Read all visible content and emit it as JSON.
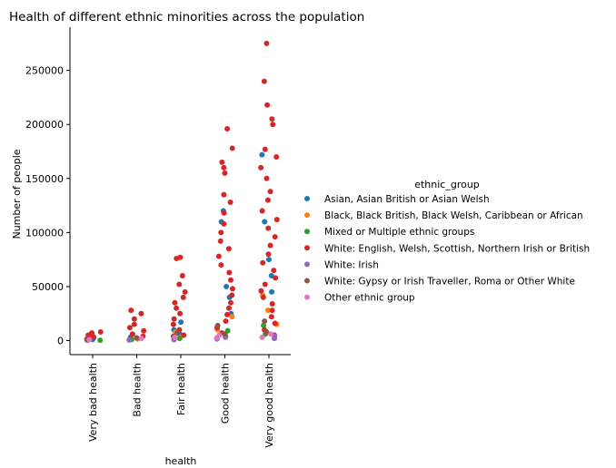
{
  "chart_data": {
    "type": "scatter",
    "title": "Health of different ethnic minorities across the population",
    "xlabel": "health",
    "ylabel": "Number of people",
    "categories": [
      "Very bad health",
      "Bad health",
      "Fair health",
      "Good health",
      "Very good health"
    ],
    "ylim": [
      -13000,
      290000
    ],
    "yticks": [
      0,
      50000,
      100000,
      150000,
      200000,
      250000
    ],
    "ytick_labels": [
      "0",
      "50000",
      "100000",
      "150000",
      "200000",
      "250000"
    ],
    "grid": false,
    "legend": {
      "title": "ethnic_group",
      "placement": "right"
    },
    "series": [
      {
        "name": "Asian, Asian British or Asian Welsh",
        "color": "#1f77b4",
        "points": [
          [
            0,
            1000
          ],
          [
            0,
            2500
          ],
          [
            1,
            3000
          ],
          [
            1,
            6000
          ],
          [
            2,
            6000
          ],
          [
            2,
            17000
          ],
          [
            2,
            10000
          ],
          [
            3,
            25000
          ],
          [
            3,
            50000
          ],
          [
            3,
            120000
          ],
          [
            3,
            110000
          ],
          [
            3,
            40000
          ],
          [
            4,
            60000
          ],
          [
            4,
            172000
          ],
          [
            4,
            75000
          ],
          [
            4,
            110000
          ],
          [
            4,
            45000
          ]
        ]
      },
      {
        "name": "Black, Black British, Black Welsh, Caribbean or African",
        "color": "#ff7f0e",
        "points": [
          [
            0,
            500
          ],
          [
            1,
            1500
          ],
          [
            2,
            3000
          ],
          [
            2,
            8000
          ],
          [
            3,
            10000
          ],
          [
            3,
            22000
          ],
          [
            4,
            15000
          ],
          [
            4,
            42000
          ],
          [
            4,
            28000
          ]
        ]
      },
      {
        "name": "Mixed or Multiple ethnic groups",
        "color": "#2ca02c",
        "points": [
          [
            0,
            300
          ],
          [
            1,
            1000
          ],
          [
            2,
            2000
          ],
          [
            3,
            4000
          ],
          [
            3,
            9000
          ],
          [
            4,
            6000
          ],
          [
            4,
            14000
          ]
        ]
      },
      {
        "name": "White: English, Welsh, Scottish, Northern Irish or British",
        "color": "#d62728",
        "points": [
          [
            0,
            8000
          ],
          [
            0,
            7000
          ],
          [
            0,
            5000
          ],
          [
            0,
            3500
          ],
          [
            0,
            2000
          ],
          [
            1,
            28000
          ],
          [
            1,
            25000
          ],
          [
            1,
            20000
          ],
          [
            1,
            15000
          ],
          [
            1,
            12000
          ],
          [
            1,
            9000
          ],
          [
            1,
            6000
          ],
          [
            1,
            4000
          ],
          [
            2,
            77000
          ],
          [
            2,
            76000
          ],
          [
            2,
            60000
          ],
          [
            2,
            52000
          ],
          [
            2,
            45000
          ],
          [
            2,
            40000
          ],
          [
            2,
            35000
          ],
          [
            2,
            30000
          ],
          [
            2,
            25000
          ],
          [
            2,
            20000
          ],
          [
            2,
            15000
          ],
          [
            2,
            10000
          ],
          [
            2,
            5000
          ],
          [
            3,
            196000
          ],
          [
            3,
            178000
          ],
          [
            3,
            165000
          ],
          [
            3,
            160000
          ],
          [
            3,
            155000
          ],
          [
            3,
            135000
          ],
          [
            3,
            128000
          ],
          [
            3,
            118000
          ],
          [
            3,
            108000
          ],
          [
            3,
            100000
          ],
          [
            3,
            92000
          ],
          [
            3,
            85000
          ],
          [
            3,
            78000
          ],
          [
            3,
            70000
          ],
          [
            3,
            63000
          ],
          [
            3,
            56000
          ],
          [
            3,
            48000
          ],
          [
            3,
            42000
          ],
          [
            3,
            35000
          ],
          [
            3,
            30000
          ],
          [
            3,
            24000
          ],
          [
            3,
            18000
          ],
          [
            3,
            12000
          ],
          [
            3,
            7000
          ],
          [
            4,
            275000
          ],
          [
            4,
            240000
          ],
          [
            4,
            218000
          ],
          [
            4,
            205000
          ],
          [
            4,
            200000
          ],
          [
            4,
            177000
          ],
          [
            4,
            170000
          ],
          [
            4,
            160000
          ],
          [
            4,
            150000
          ],
          [
            4,
            138000
          ],
          [
            4,
            130000
          ],
          [
            4,
            120000
          ],
          [
            4,
            112000
          ],
          [
            4,
            104000
          ],
          [
            4,
            96000
          ],
          [
            4,
            88000
          ],
          [
            4,
            80000
          ],
          [
            4,
            72000
          ],
          [
            4,
            65000
          ],
          [
            4,
            58000
          ],
          [
            4,
            52000
          ],
          [
            4,
            46000
          ],
          [
            4,
            40000
          ],
          [
            4,
            34000
          ],
          [
            4,
            28000
          ],
          [
            4,
            22000
          ],
          [
            4,
            16000
          ],
          [
            4,
            10000
          ],
          [
            4,
            5000
          ]
        ]
      },
      {
        "name": "White: Irish",
        "color": "#9467bd",
        "points": [
          [
            0,
            200
          ],
          [
            1,
            500
          ],
          [
            2,
            800
          ],
          [
            3,
            1500
          ],
          [
            3,
            3000
          ],
          [
            4,
            2000
          ],
          [
            4,
            4000
          ]
        ]
      },
      {
        "name": "White: Gypsy or Irish Traveller, Roma or Other White",
        "color": "#8c564b",
        "points": [
          [
            0,
            1500
          ],
          [
            1,
            2500
          ],
          [
            2,
            4000
          ],
          [
            2,
            7000
          ],
          [
            3,
            6000
          ],
          [
            3,
            14000
          ],
          [
            4,
            8000
          ],
          [
            4,
            18000
          ]
        ]
      },
      {
        "name": "Other ethnic group",
        "color": "#e377c2",
        "points": [
          [
            0,
            800
          ],
          [
            1,
            2000
          ],
          [
            2,
            3000
          ],
          [
            3,
            5000
          ],
          [
            3,
            2500
          ],
          [
            4,
            6000
          ],
          [
            4,
            3000
          ]
        ]
      }
    ]
  }
}
